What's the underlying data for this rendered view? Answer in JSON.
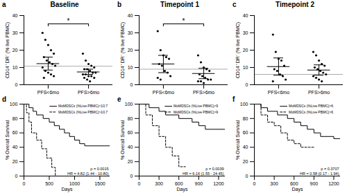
{
  "chart_data": [
    {
      "type": "dot_plot",
      "panel": "a",
      "title": "Baseline",
      "y_label": "CD14⁺ DR⁻ (% live PBMC)",
      "categories": [
        "PFS<6mo",
        "PFS>6mo"
      ],
      "points": [
        [
          30,
          26,
          23,
          20,
          18,
          16,
          14,
          13,
          12,
          11,
          10,
          8,
          7,
          6,
          5,
          4
        ],
        [
          18,
          14,
          12,
          11,
          10,
          9,
          9,
          8,
          7,
          7,
          6,
          6,
          5,
          5,
          4,
          4,
          3,
          2
        ]
      ],
      "means": [
        12.2,
        7.4
      ],
      "error_low": [
        8.5,
        6
      ],
      "error_high": [
        16,
        9
      ],
      "reference_line": 10.7,
      "significance": "*",
      "color": "#000000",
      "ylim": [
        0,
        40
      ],
      "yticks": [
        0,
        10,
        20,
        30,
        40
      ]
    },
    {
      "type": "dot_plot",
      "panel": "b",
      "title": "Timepoint 1",
      "y_label": "CD14⁺ DR⁻ (% live PBMC)",
      "categories": [
        "PFS<6mo",
        "PFS>6mo"
      ],
      "points": [
        [
          31,
          20,
          17,
          16,
          15,
          12,
          11,
          8,
          7,
          5,
          4,
          3
        ],
        [
          17,
          13,
          10,
          9,
          8,
          6,
          5,
          4,
          3,
          3,
          2,
          2,
          1
        ]
      ],
      "means": [
        12,
        6.5
      ],
      "error_low": [
        7,
        3.5
      ],
      "error_high": [
        17,
        9.5
      ],
      "reference_line": 9,
      "significance": "*",
      "color": "#000000",
      "ylim": [
        0,
        40
      ],
      "yticks": [
        0,
        10,
        20,
        30,
        40
      ]
    },
    {
      "type": "dot_plot",
      "panel": "c",
      "title": "Timepoint 2",
      "y_label": "CD14⁺ DR⁻ (% live PBMC)",
      "categories": [
        "PFS<6mo",
        "PFS>6mo"
      ],
      "points": [
        [
          29,
          19,
          15,
          14,
          11,
          9,
          8,
          6,
          5,
          3,
          2
        ],
        [
          19,
          17,
          14,
          12,
          11,
          10,
          9,
          8,
          7,
          6,
          5,
          4,
          3,
          2
        ]
      ],
      "means": [
        10.5,
        8.5
      ],
      "error_low": [
        5.5,
        5.5
      ],
      "error_high": [
        15.5,
        11.5
      ],
      "reference_line": 6,
      "color": "#000000",
      "ylim": [
        0,
        40
      ],
      "yticks": [
        0,
        10,
        20,
        30,
        40
      ]
    },
    {
      "type": "line",
      "panel": "d",
      "x_label": "Days",
      "y_label": "% Overall Survival",
      "xlim": [
        0,
        1700
      ],
      "xticks": [
        0,
        500,
        1000,
        1500
      ],
      "ylim": [
        0,
        100
      ],
      "yticks": [
        0,
        20,
        40,
        60,
        80,
        100
      ],
      "legend": "top-right",
      "series": [
        {
          "name": "MoMDSCs (%Live PBMC)<10.7",
          "color": "#000000",
          "line_style": "solid",
          "x": [
            0,
            100,
            180,
            250,
            380,
            500,
            600,
            700,
            800,
            900,
            1000,
            1100,
            1200,
            1700
          ],
          "values": [
            100,
            95,
            90,
            85,
            80,
            75,
            70,
            65,
            60,
            55,
            50,
            45,
            42,
            42
          ]
        },
        {
          "name": "MoMDSCs (%Live PBMC)>10.7",
          "color": "#000000",
          "line_style": "dashed",
          "x": [
            0,
            50,
            100,
            150,
            250,
            350,
            450,
            550,
            620
          ],
          "values": [
            100,
            88,
            75,
            60,
            50,
            38,
            25,
            12,
            0
          ]
        }
      ],
      "annotations": [
        "p = 0.0015",
        "HR = 4.82 (1.44 - 10.80)"
      ]
    },
    {
      "type": "line",
      "panel": "e",
      "x_label": "Days",
      "y_label": "% Overall Survival",
      "xlim": [
        0,
        1300
      ],
      "xticks": [
        0,
        300,
        600,
        900,
        1200
      ],
      "ylim": [
        0,
        100
      ],
      "yticks": [
        0,
        20,
        40,
        60,
        80,
        100
      ],
      "legend": "top-right",
      "series": [
        {
          "name": "MoMDSCs (%Live PBMC)<9",
          "color": "#000000",
          "line_style": "solid",
          "x": [
            0,
            150,
            300,
            400,
            600,
            800,
            900,
            1000,
            1300
          ],
          "values": [
            100,
            95,
            90,
            85,
            80,
            75,
            70,
            65,
            65
          ]
        },
        {
          "name": "MoMDSCs (%Live PBMC)>9",
          "color": "#000000",
          "line_style": "dashed",
          "x": [
            0,
            100,
            200,
            300,
            400,
            500,
            600,
            700
          ],
          "values": [
            100,
            85,
            70,
            55,
            40,
            28,
            13,
            13
          ]
        }
      ],
      "annotations": [
        "p = 0.0039",
        "HR = 6.16 (1.55 - 24.45)"
      ]
    },
    {
      "type": "line",
      "panel": "f",
      "x_label": "Days",
      "y_label": "% Overall Survival",
      "xlim": [
        0,
        1300
      ],
      "xticks": [
        0,
        300,
        600,
        900,
        1200
      ],
      "ylim": [
        0,
        100
      ],
      "yticks": [
        0,
        20,
        40,
        60,
        80,
        100
      ],
      "legend": "top-right",
      "series": [
        {
          "name": "MoMDSCs (%Live PBMC)<6",
          "color": "#000000",
          "line_style": "solid",
          "x": [
            0,
            100,
            200,
            350,
            500,
            600,
            700,
            800,
            900,
            1000,
            1200,
            1300
          ],
          "values": [
            100,
            95,
            90,
            85,
            80,
            75,
            70,
            65,
            60,
            55,
            52,
            52
          ]
        },
        {
          "name": "MoMDSCs (%Live PBMC)>6",
          "color": "#000000",
          "line_style": "dashed",
          "x": [
            0,
            100,
            200,
            300,
            400,
            500,
            600,
            700,
            900
          ],
          "values": [
            100,
            85,
            75,
            70,
            60,
            50,
            45,
            40,
            40
          ]
        }
      ],
      "annotations": [
        "p = 0.3707",
        "HR = 0.58 (0.17 - 1.94)"
      ]
    }
  ]
}
